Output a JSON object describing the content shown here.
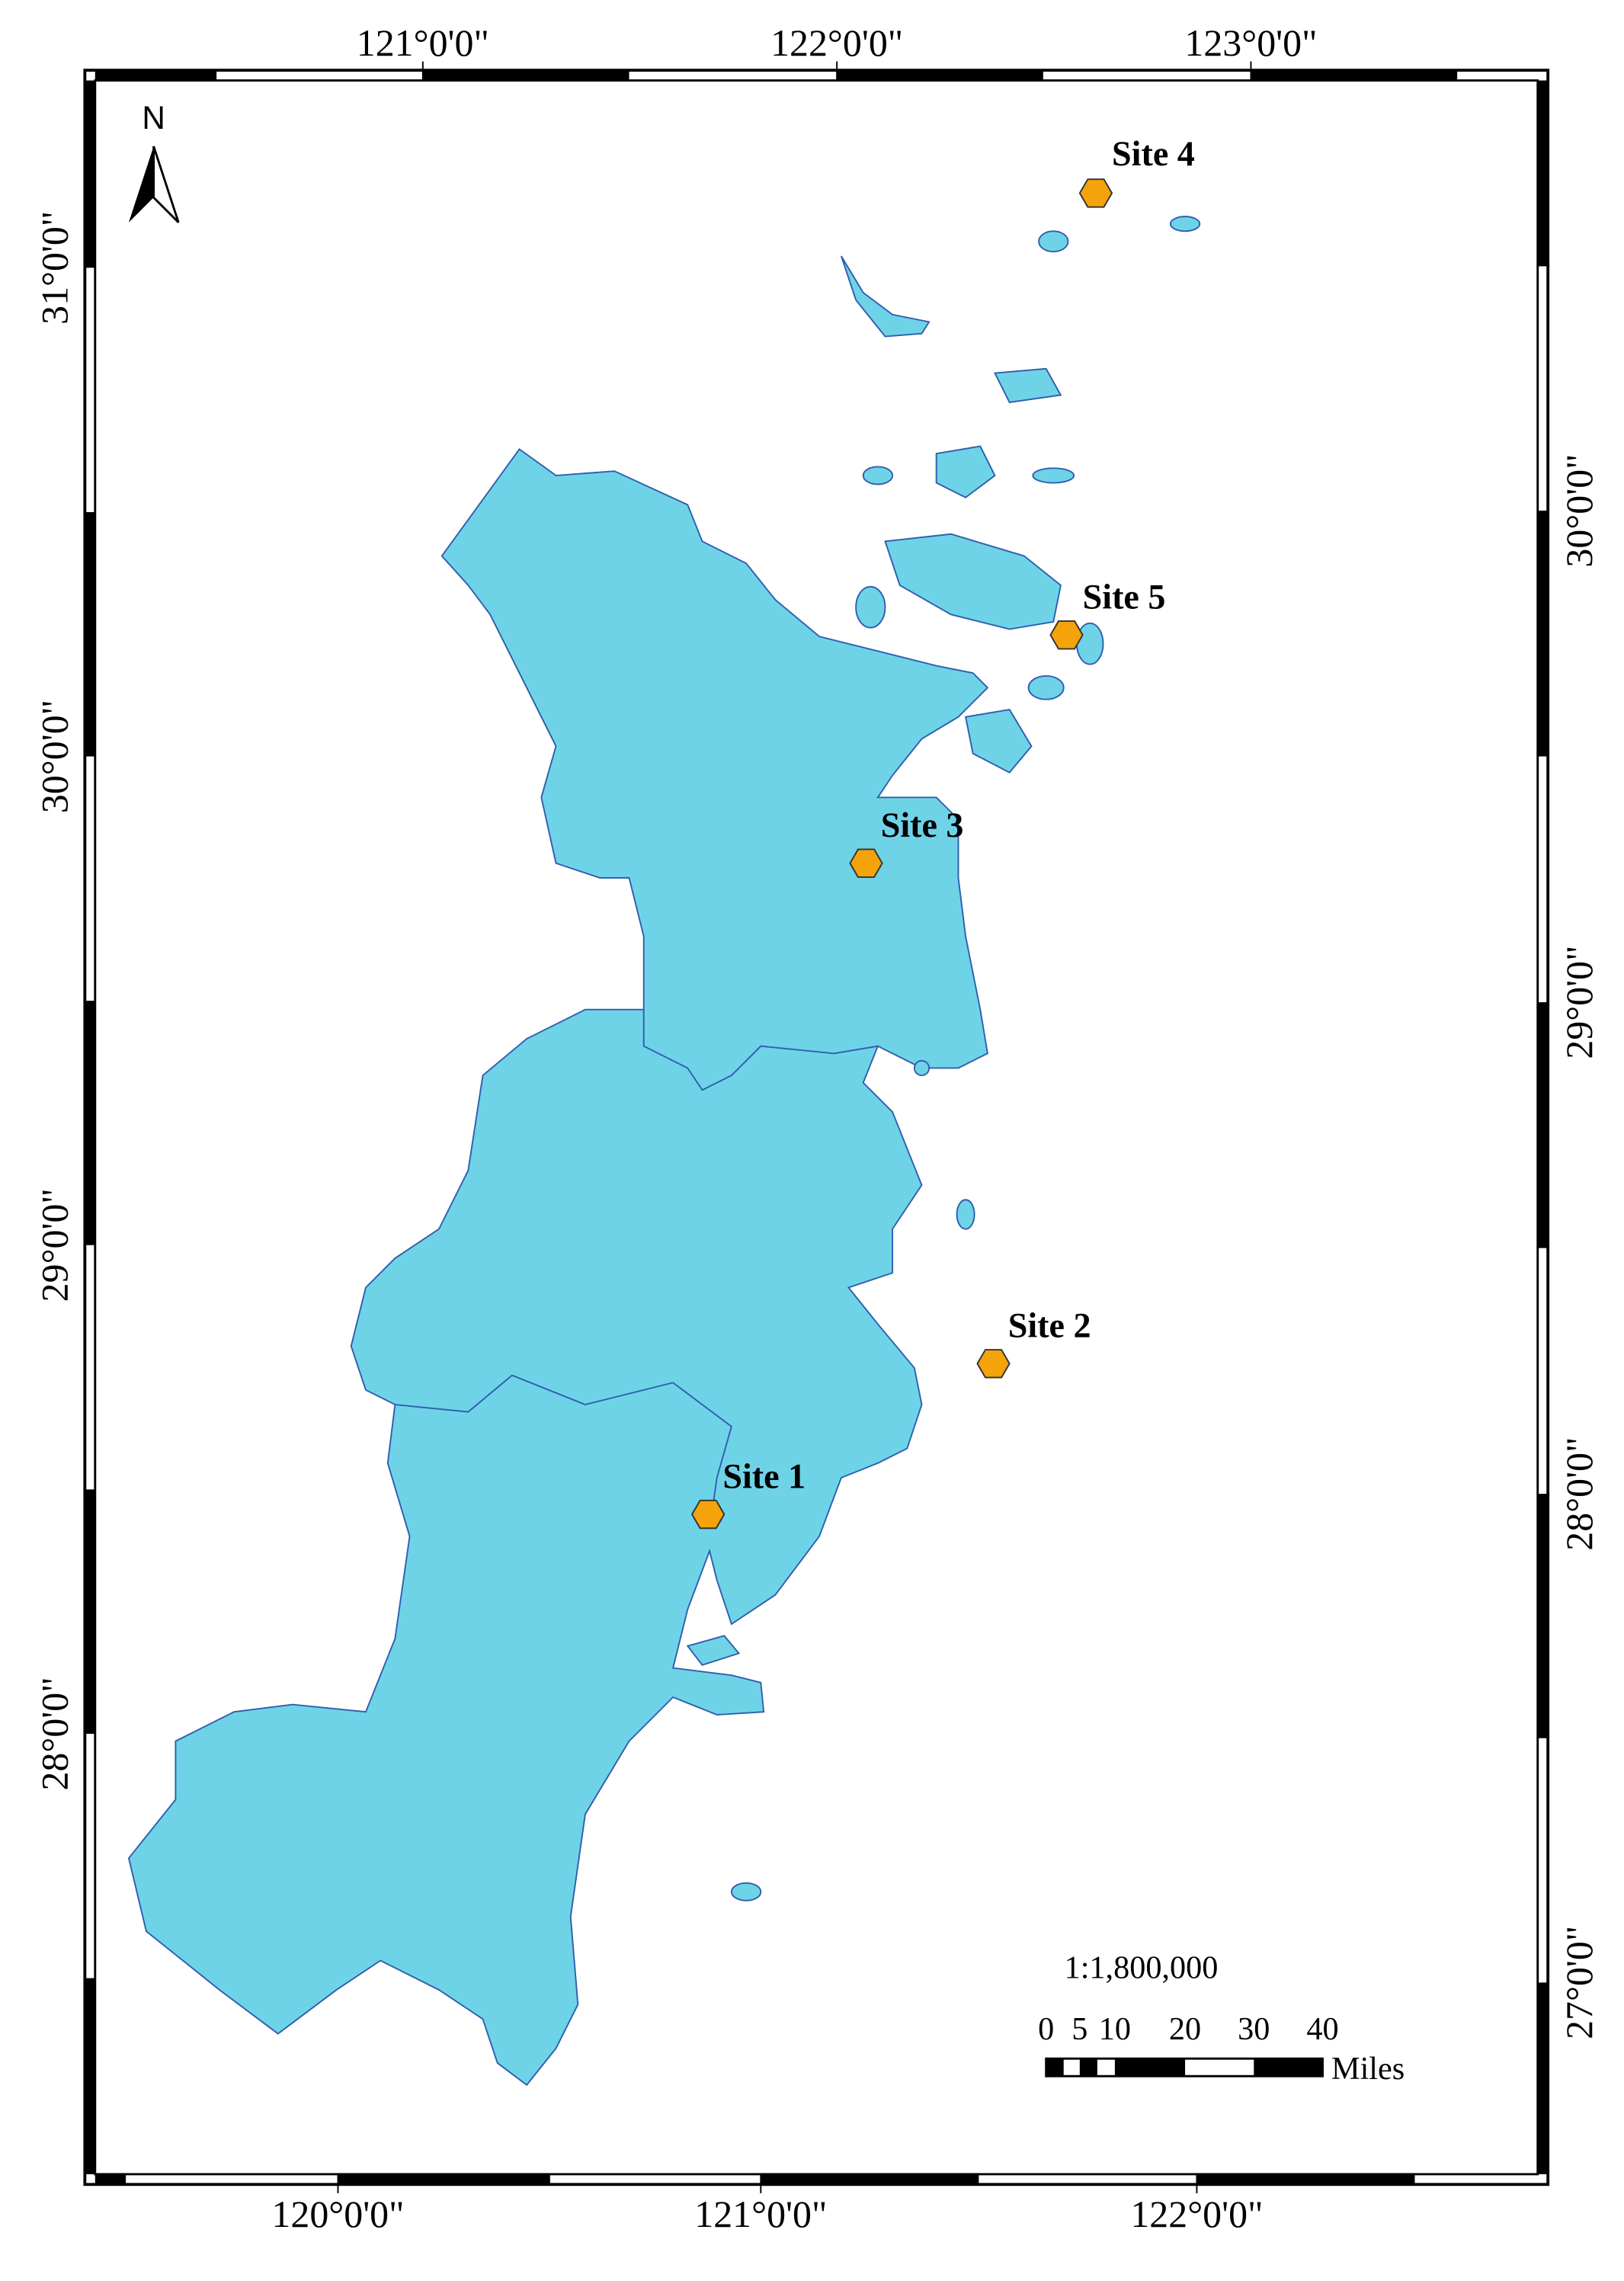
{
  "north": "N",
  "top_labels": [
    "121°0'0\"",
    "122°0'0\"",
    "123°0'0\""
  ],
  "bottom_labels": [
    "120°0'0\"",
    "121°0'0\"",
    "122°0'0\""
  ],
  "left_labels": [
    "31°0'0\"",
    "30°0'0\"",
    "29°0'0\"",
    "28°0'0\""
  ],
  "right_labels": [
    "30°0'0\"",
    "29°0'0\"",
    "28°0'0\"",
    "27°0'0\""
  ],
  "sites": [
    "Site 1",
    "Site 2",
    "Site 3",
    "Site 4",
    "Site 5"
  ],
  "scale": {
    "ratio": "1:1,800,000",
    "ticks": [
      "0",
      "5",
      "10",
      "20",
      "30",
      "40"
    ],
    "unit": "Miles"
  }
}
